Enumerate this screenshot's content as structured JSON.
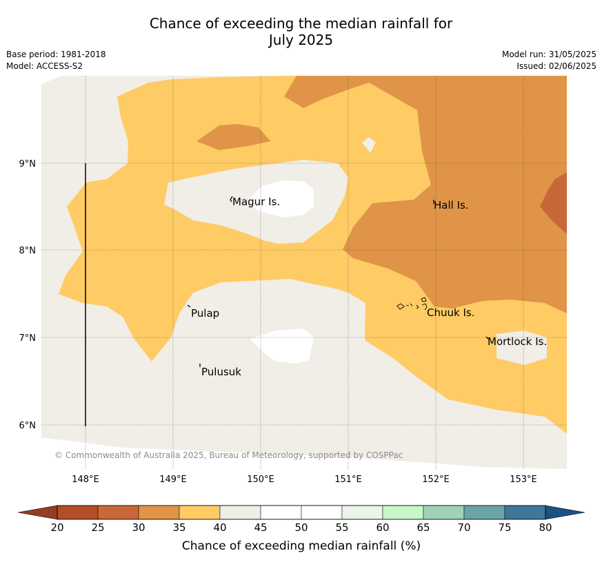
{
  "header": {
    "title_line1": "Chance of exceeding the median rainfall for",
    "title_line2": "July 2025",
    "base_period": "Base period: 1981-2018",
    "model": "Model: ACCESS-S2",
    "model_run": "Model run: 31/05/2025",
    "issued": "Issued: 02/06/2025"
  },
  "map": {
    "lon_ticks": [
      "148°E",
      "149°E",
      "150°E",
      "151°E",
      "152°E",
      "153°E"
    ],
    "lat_ticks": [
      "9°N",
      "8°N",
      "7°N",
      "6°N"
    ],
    "places": [
      {
        "name": "Magur Is."
      },
      {
        "name": "Hall Is."
      },
      {
        "name": "Pulap"
      },
      {
        "name": "Chuuk Is."
      },
      {
        "name": "Mortlock Is."
      },
      {
        "name": "Pulusuk"
      }
    ],
    "copyright": "© Commonwealth of Australia 2025, Bureau of Meteorology, supported by COSPPac",
    "category_colors": {
      "20-25": "#b34e28",
      "25-30": "#c8683a",
      "30-35": "#e09447",
      "35-40": "#fecb65",
      "40-45": "#f1ede7",
      "45-55": "#ffffff"
    }
  },
  "colorbar": {
    "labels": [
      "20",
      "25",
      "30",
      "35",
      "40",
      "45",
      "50",
      "55",
      "60",
      "65",
      "70",
      "75",
      "80"
    ],
    "colors": [
      "#b34e28",
      "#c8683a",
      "#e09447",
      "#fecb65",
      "#f1ede7",
      "#ffffff",
      "#ffffff",
      "#eaf4e8",
      "#c9f6c8",
      "#9fd2b8",
      "#6aa4a6",
      "#3e7799"
    ],
    "under_color": "#943d22",
    "over_color": "#1d5083",
    "title": "Chance of exceeding median rainfall (%)"
  }
}
